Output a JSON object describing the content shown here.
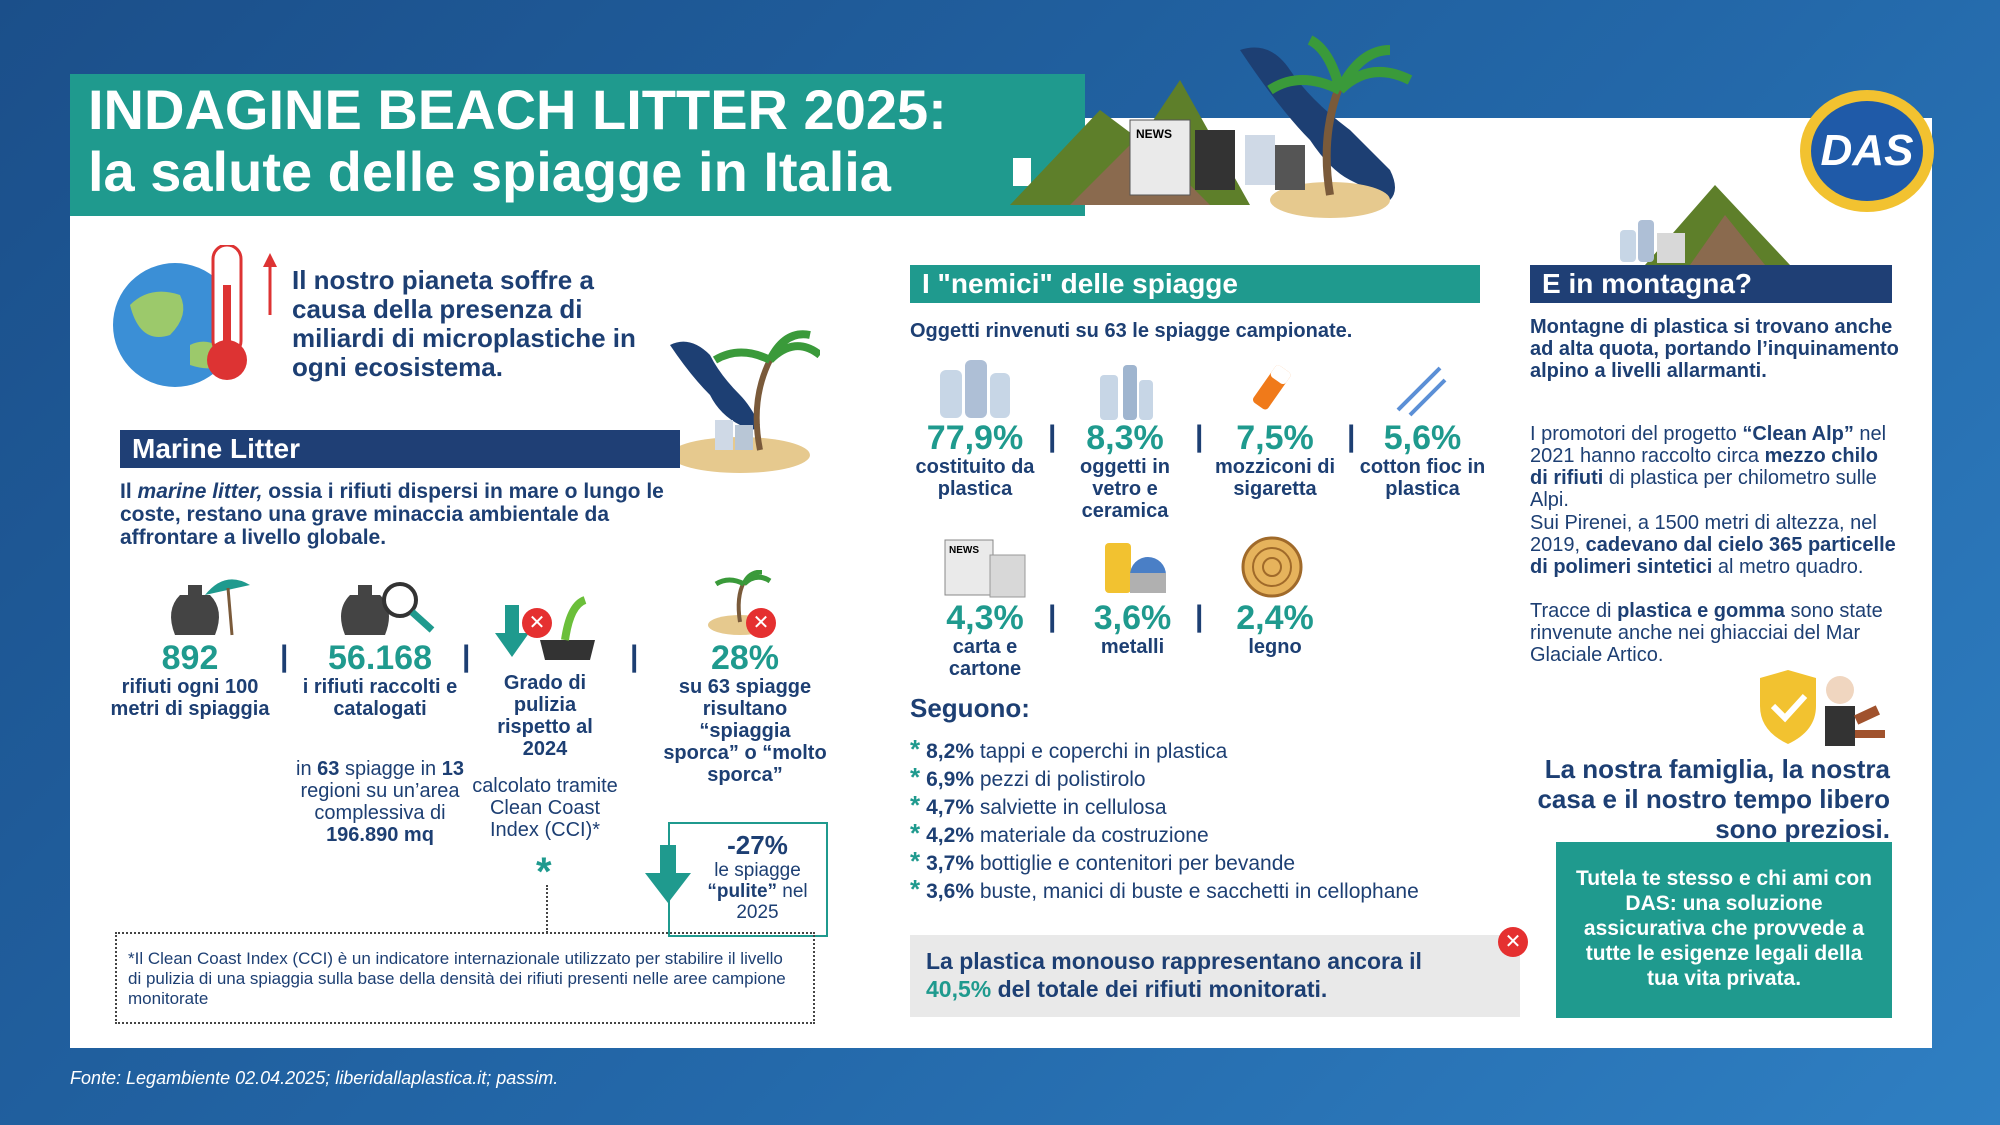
{
  "header": {
    "title_line1": "INDAGINE BEACH LITTER 2025:",
    "title_line2": "la salute delle spiagge in Italia",
    "logo_text": "DAS"
  },
  "intro": {
    "text": "Il nostro pianeta soffre a causa della presenza di miliardi di microplastiche in ogni ecosistema."
  },
  "marine": {
    "heading": "Marine Litter",
    "text_pre": "Il ",
    "text_em": "marine litter,",
    "text_post": " ossia i rifiuti dispersi in mare o lungo le coste, restano una grave minaccia ambientale da affrontare a livello globale.",
    "stats": [
      {
        "value": "892",
        "label": "rifiuti ogni 100 metri di spiaggia"
      },
      {
        "value": "56.168",
        "label": "i rifiuti raccolti e catalogati"
      },
      {
        "label": "Grado di pulizia rispetto al 2024"
      },
      {
        "value": "28%",
        "label": "su 63 spiagge risultano “spiaggia sporca” o “molto sporca”"
      }
    ],
    "stat2_sub_pre": "in ",
    "stat2_sub_b1": "63",
    "stat2_sub_mid1": " spiagge in ",
    "stat2_sub_b2": "13",
    "stat2_sub_mid2": " regioni su un’area complessiva di",
    "stat2_sub_b3": "196.890 mq",
    "stat3_sub": "calcolato tramite Clean Coast Index (CCI)*",
    "asterisk": "*",
    "clean_value": "-27%",
    "clean_pre": "le spiagge",
    "clean_bold": "“pulite”",
    "clean_post": " nel 2025",
    "footnote": "*Il Clean Coast Index (CCI) è un indicatore internazionale utilizzato per stabilire il livello di pulizia di una spiaggia sulla base della densità dei rifiuti presenti nelle aree campione monitorate"
  },
  "enemies": {
    "heading": "I \"nemici\" delle spiagge",
    "subheading": "Oggetti rinvenuti su 63 le spiagge campionate.",
    "items": [
      {
        "value": "77,9%",
        "label": "costituito da plastica"
      },
      {
        "value": "8,3%",
        "label": "oggetti in vetro e ceramica"
      },
      {
        "value": "7,5%",
        "label": "mozziconi di sigaretta"
      },
      {
        "value": "5,6%",
        "label": "cotton fioc in plastica"
      },
      {
        "value": "4,3%",
        "label": "carta e cartone"
      },
      {
        "value": "3,6%",
        "label": "metalli"
      },
      {
        "value": "2,4%",
        "label": "legno"
      }
    ],
    "separator": "|",
    "seguono_title": "Seguono:",
    "seguono": [
      {
        "pct": "8,2%",
        "text": "tappi e coperchi in plastica"
      },
      {
        "pct": "6,9%",
        "text": "pezzi di polistirolo"
      },
      {
        "pct": "4,7%",
        "text": "salviette in cellulosa"
      },
      {
        "pct": "4,2%",
        "text": "materiale da costruzione"
      },
      {
        "pct": "3,7%",
        "text": "bottiglie e contenitori per bevande"
      },
      {
        "pct": "3,6%",
        "text": "buste, manici di buste e sacchetti in cellophane"
      }
    ],
    "star": "*",
    "plastic_pre": "La plastica monouso rappresentano ancora il",
    "plastic_pct": "40,5%",
    "plastic_post": " del totale dei rifiuti monitorati."
  },
  "mountain": {
    "heading": "E in montagna?",
    "intro": "Montagne di plastica si trovano anche ad alta quota, portando l’inquinamento alpino a livelli allarmanti.",
    "p1_pre": "I promotori del progetto ",
    "p1_b1": "“Clean Alp”",
    "p1_mid": " nel 2021 hanno raccolto circa ",
    "p1_b2": "mezzo chilo di rifiuti",
    "p1_post": " di plastica per chilometro sulle Alpi.",
    "p2_pre": "Sui Pirenei, a 1500 metri di altezza, nel 2019, ",
    "p2_b": "cadevano dal cielo 365 particelle di polimeri sintetici",
    "p2_post": " al metro quadro.",
    "p3_pre": "Tracce di ",
    "p3_b": "plastica e gomma",
    "p3_post": " sono state rinvenute anche nei ghiacciai del Mar Glaciale Artico."
  },
  "family": {
    "text": "La nostra famiglia, la nostra casa e il nostro tempo libero sono preziosi."
  },
  "das_box": {
    "text": "Tutela te stesso e chi ami con DAS: una soluzione assicurativa che provvede a tutte le esigenze legali della tua vita privata."
  },
  "source": {
    "text": "Fonte: Legambiente 02.04.2025; liberidallaplastica.it; passim."
  },
  "badges": {
    "x": "✕",
    "news": "NEWS"
  },
  "colors": {
    "teal": "#1f9a8e",
    "navy": "#1d3f73",
    "red": "#e53030"
  }
}
